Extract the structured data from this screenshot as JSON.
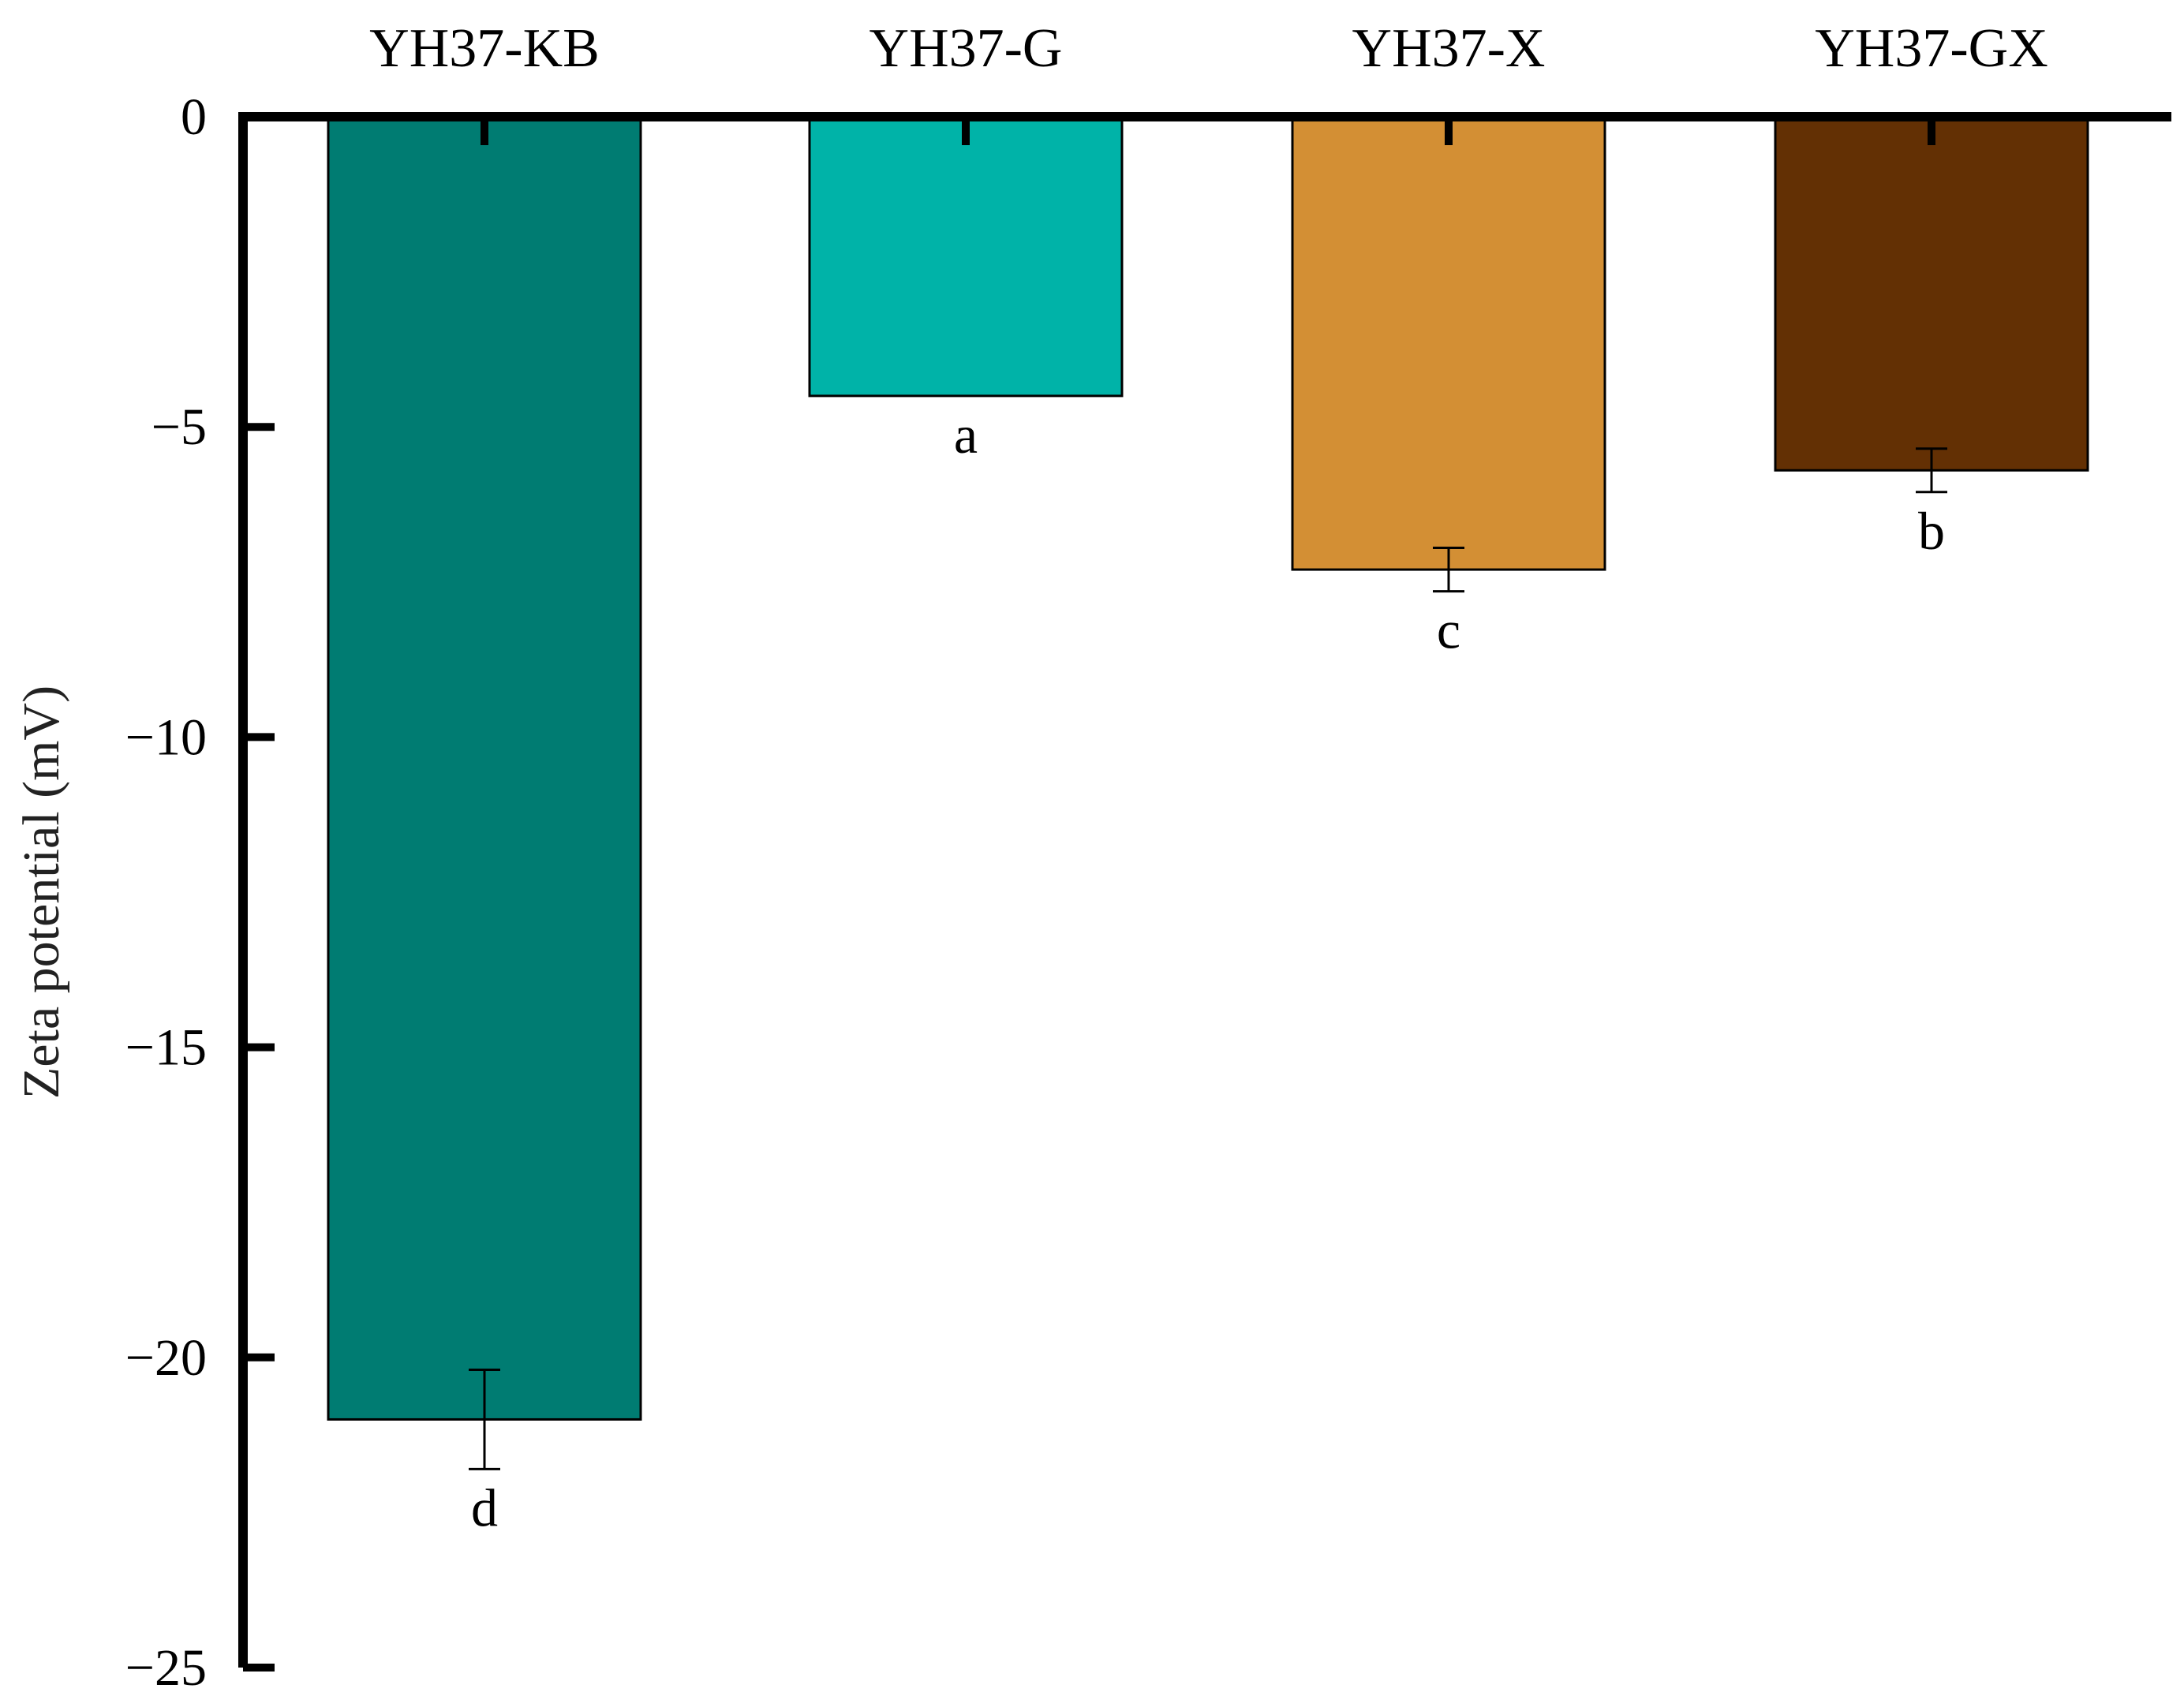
{
  "chart_data": {
    "type": "bar",
    "title": "",
    "xlabel": "",
    "ylabel": "Zeta potential (mV)",
    "categories": [
      "YH37-KB",
      "YH37-G",
      "YH37-X",
      "YH37-GX"
    ],
    "values": [
      -21.0,
      -4.5,
      -7.3,
      -5.7
    ],
    "errors": [
      0.8,
      0.0,
      0.35,
      0.35
    ],
    "significance": [
      "d",
      "a",
      "c",
      "b"
    ],
    "colors": [
      "#007C72",
      "#00B3A8",
      "#D38F34",
      "#633004"
    ],
    "ylim": [
      -25,
      0
    ],
    "yticks": [
      0,
      -5,
      -10,
      -15,
      -20,
      -25
    ],
    "ytick_labels": [
      "0",
      "−5",
      "−10",
      "−15",
      "−20",
      "−25"
    ],
    "category_axis_position": "top",
    "grid": false,
    "legend": "none"
  }
}
